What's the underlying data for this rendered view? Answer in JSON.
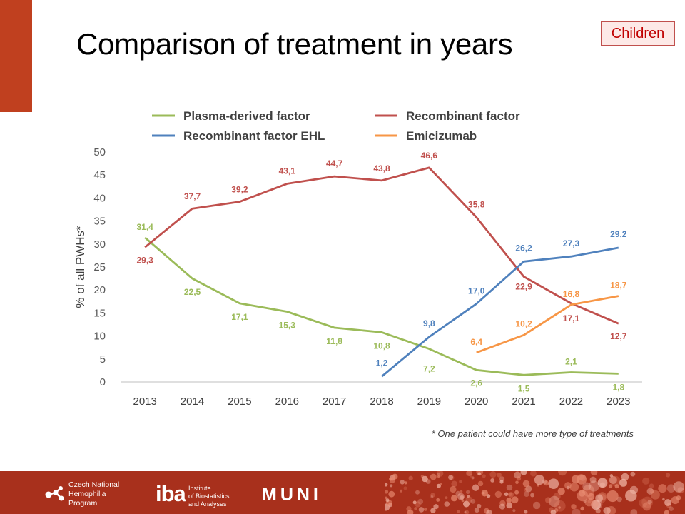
{
  "slide": {
    "title": "Comparison of treatment in years",
    "badge": "Children",
    "footnote": "* One patient could have more type of treatments"
  },
  "footer": {
    "logo_hemophilia": [
      "Czech National",
      "Hemophilia",
      "Program"
    ],
    "logo_iba_mark": "iba",
    "logo_iba_text": [
      "Institute",
      "of Biostatistics",
      "and Analyses"
    ],
    "logo_muni": "MUNI",
    "background_color": "#a8301c"
  },
  "chart_data": {
    "type": "line",
    "title": "",
    "xlabel": "",
    "ylabel": "% of all PWHs*",
    "x": [
      "2013",
      "2014",
      "2015",
      "2016",
      "2017",
      "2018",
      "2019",
      "2020",
      "2021",
      "2022",
      "2023"
    ],
    "ylim": [
      0,
      50
    ],
    "yticks": [
      0,
      5,
      10,
      15,
      20,
      25,
      30,
      35,
      40,
      45,
      50
    ],
    "grid": false,
    "legend_position": "top",
    "decimal_separator": ",",
    "series": [
      {
        "name": "Plasma-derived factor",
        "color": "#9bbb59",
        "values": [
          31.4,
          22.5,
          17.1,
          15.3,
          11.8,
          10.8,
          7.2,
          2.6,
          1.5,
          2.1,
          1.8
        ],
        "labels": [
          "31,4",
          "22,5",
          "17,1",
          "15,3",
          "11,8",
          "10,8",
          "7,2",
          "2,6",
          "1,5",
          "2,1",
          "1,8"
        ]
      },
      {
        "name": "Recombinant factor",
        "color": "#c0504d",
        "values": [
          29.3,
          37.7,
          39.2,
          43.1,
          44.7,
          43.8,
          46.6,
          35.8,
          22.9,
          17.1,
          12.7
        ],
        "labels": [
          "29,3",
          "37,7",
          "39,2",
          "43,1",
          "44,7",
          "43,8",
          "46,6",
          "35,8",
          "22,9",
          "17,1",
          "12,7"
        ]
      },
      {
        "name": "Recombinant factor EHL",
        "color": "#4f81bd",
        "values": [
          null,
          null,
          null,
          null,
          null,
          1.2,
          9.8,
          17.0,
          26.2,
          27.3,
          29.2
        ],
        "labels": [
          null,
          null,
          null,
          null,
          null,
          "1,2",
          "9,8",
          "17,0",
          "26,2",
          "27,3",
          "29,2"
        ]
      },
      {
        "name": "Emicizumab",
        "color": "#f79646",
        "values": [
          null,
          null,
          null,
          null,
          null,
          null,
          null,
          6.4,
          10.2,
          16.8,
          18.7
        ],
        "labels": [
          null,
          null,
          null,
          null,
          null,
          null,
          null,
          "6,4",
          "10,2",
          "16,8",
          "18,7"
        ]
      }
    ]
  }
}
